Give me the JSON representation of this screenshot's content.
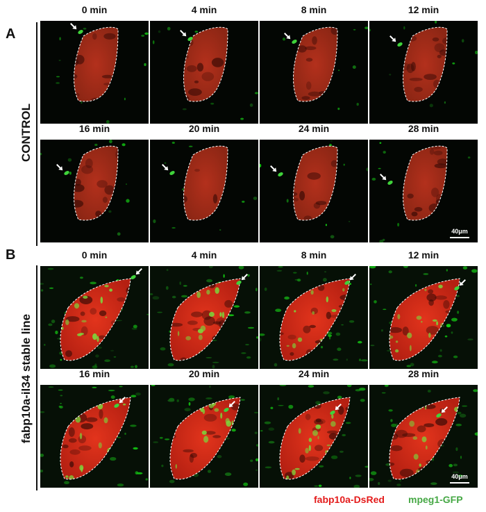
{
  "figure": {
    "panels": [
      {
        "letter": "A",
        "row_label": "CONTROL",
        "frames": [
          "0 min",
          "4 min",
          "8 min",
          "12 min",
          "16 min",
          "20 min",
          "24 min",
          "28 min"
        ],
        "scale_bar": "40μm",
        "condition": "control"
      },
      {
        "letter": "B",
        "row_label": "fabp10a-il34 stable line",
        "frames": [
          "0 min",
          "4 min",
          "8 min",
          "12 min",
          "16 min",
          "20 min",
          "24 min",
          "28 min"
        ],
        "scale_bar": "40μm",
        "condition": "il34"
      }
    ],
    "legend": {
      "red_label": "fabp10a-DsRed",
      "green_label": "mpeg1-GFP",
      "red_color": "#e41b1b",
      "green_color": "#46a845"
    }
  }
}
